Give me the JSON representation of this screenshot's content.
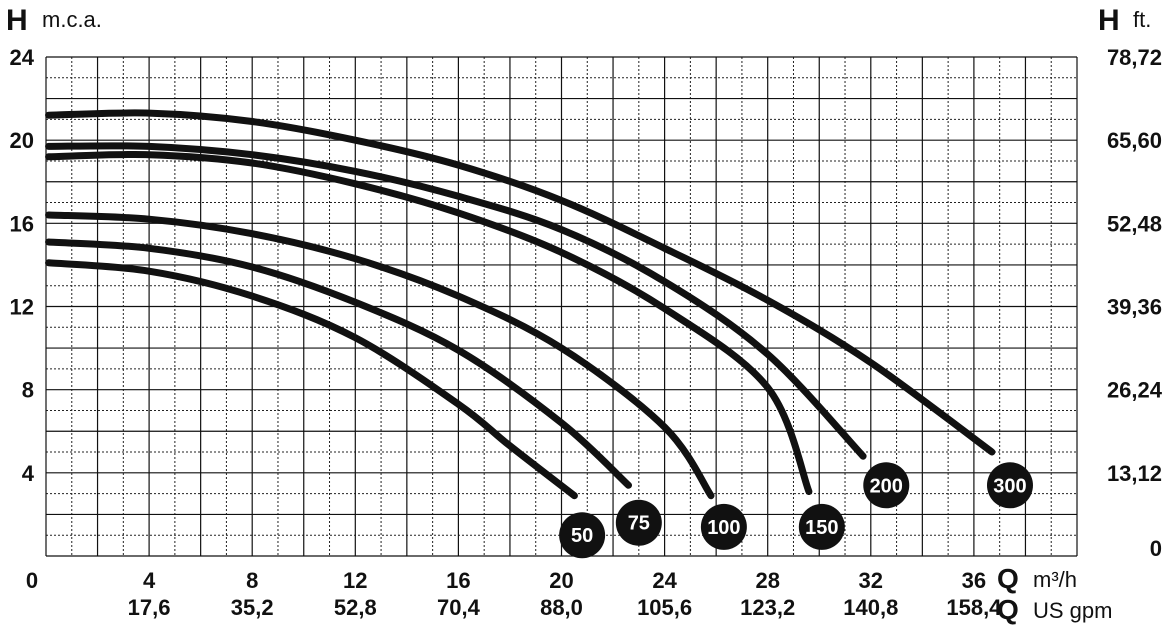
{
  "chart_data": {
    "type": "line",
    "y_left": {
      "letter": "H",
      "unit": "m.c.a.",
      "ticks": [
        "4",
        "8",
        "12",
        "16",
        "20",
        "24"
      ],
      "range": [
        0,
        24
      ]
    },
    "y_right": {
      "letter": "H",
      "unit": "ft.",
      "ticks": [
        "0",
        "13,12",
        "26,24",
        "39,36",
        "52,48",
        "65,60",
        "78,72"
      ]
    },
    "x_bottom1": {
      "letter": "Q",
      "unit": "m³/h",
      "ticks": [
        "0",
        "4",
        "8",
        "12",
        "16",
        "20",
        "24",
        "28",
        "32",
        "36"
      ],
      "range": [
        0,
        40
      ]
    },
    "x_bottom2": {
      "letter": "Q",
      "unit": "US gpm",
      "ticks": [
        "17,6",
        "35,2",
        "52,8",
        "70,4",
        "88,0",
        "105,6",
        "123,2",
        "140,8",
        "158,4"
      ]
    },
    "grid": true,
    "series": [
      {
        "name": "50",
        "x": [
          0.1,
          4,
          8,
          12,
          16,
          18,
          20.5
        ],
        "y": [
          14.1,
          13.7,
          12.5,
          10.5,
          7.3,
          5.3,
          2.9
        ]
      },
      {
        "name": "75",
        "x": [
          0.1,
          4,
          8,
          12,
          16,
          20,
          22.6
        ],
        "y": [
          15.1,
          14.8,
          13.9,
          12.2,
          9.9,
          6.4,
          3.4
        ]
      },
      {
        "name": "100",
        "x": [
          0.1,
          4,
          8,
          12,
          16,
          20,
          24,
          25.8
        ],
        "y": [
          16.4,
          16.2,
          15.5,
          14.3,
          12.5,
          10.0,
          6.2,
          2.9
        ]
      },
      {
        "name": "150",
        "x": [
          0.1,
          4,
          8,
          12,
          16,
          20,
          24,
          28,
          29.6
        ],
        "y": [
          19.2,
          19.3,
          18.9,
          17.9,
          16.5,
          14.6,
          11.9,
          8.1,
          3.1
        ]
      },
      {
        "name": "200",
        "x": [
          0.1,
          4,
          8,
          12,
          16,
          20,
          24,
          28,
          31.7
        ],
        "y": [
          19.7,
          19.7,
          19.3,
          18.5,
          17.3,
          15.7,
          13.2,
          9.7,
          4.8
        ]
      },
      {
        "name": "300",
        "x": [
          0.1,
          4,
          8,
          12,
          16,
          20,
          24,
          28,
          32,
          36.7
        ],
        "y": [
          21.2,
          21.3,
          20.9,
          20.0,
          18.8,
          17.1,
          14.8,
          12.3,
          9.3,
          5.0
        ]
      }
    ],
    "series_labels": [
      {
        "text": "50",
        "at": [
          20.8,
          1.0
        ]
      },
      {
        "text": "75",
        "at": [
          23.0,
          1.6
        ]
      },
      {
        "text": "100",
        "at": [
          26.3,
          1.4
        ]
      },
      {
        "text": "150",
        "at": [
          30.1,
          1.4
        ]
      },
      {
        "text": "200",
        "at": [
          32.6,
          3.4
        ]
      },
      {
        "text": "300",
        "at": [
          37.4,
          3.4
        ]
      }
    ]
  }
}
